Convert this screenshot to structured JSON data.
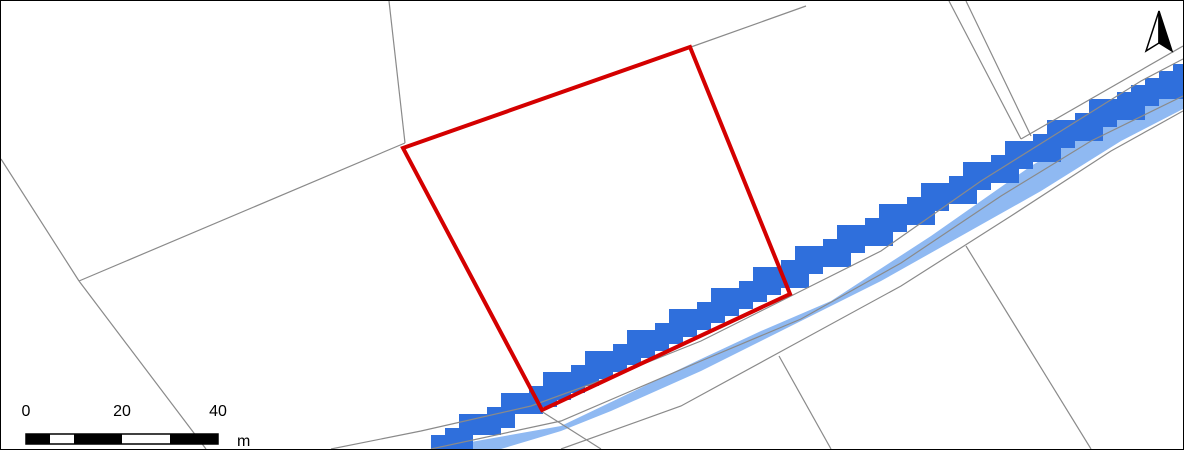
{
  "map": {
    "colors": {
      "background": "#ffffff",
      "parcel_line": "#8a8a8a",
      "highlight_boundary": "#d40000",
      "water_deep": "#2f6fdc",
      "water_shallow": "#8fb9f2"
    }
  },
  "scale_bar": {
    "labels": [
      "0",
      "20",
      "40"
    ],
    "unit": "m"
  },
  "north_arrow": {
    "icon": "north-arrow-icon"
  }
}
